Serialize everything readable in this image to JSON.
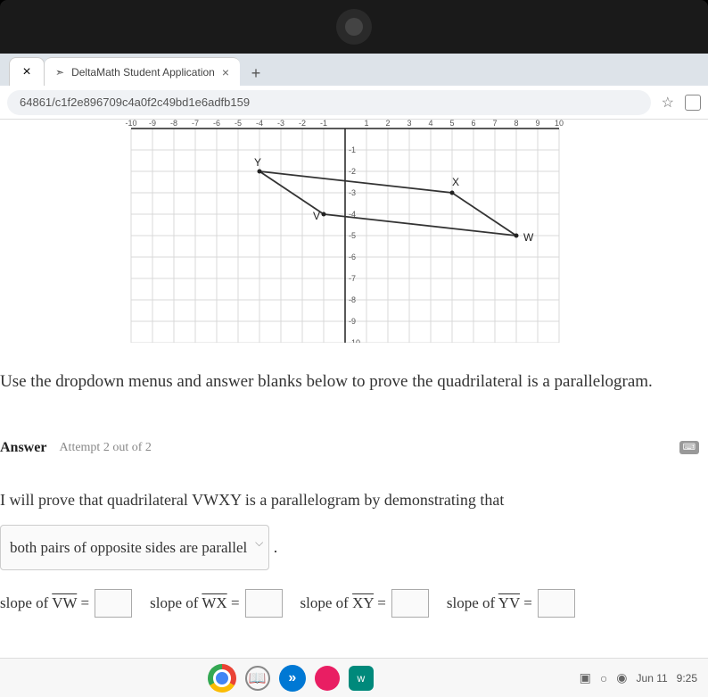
{
  "browser": {
    "tab_title": "DeltaMath Student Application",
    "url_fragment": "64861/c1f2e896709c4a0f2c49bd1e6adfb159"
  },
  "graph": {
    "x_range": [
      -10,
      10
    ],
    "y_range": [
      -10,
      0
    ],
    "points": {
      "Y": {
        "x": -4,
        "y": -2,
        "label": "Y"
      },
      "X": {
        "x": 5,
        "y": -3,
        "label": "X"
      },
      "V": {
        "x": -1,
        "y": -4,
        "label": "V"
      },
      "W": {
        "x": 8,
        "y": -5,
        "label": "W"
      }
    },
    "tick_labels_x": [
      "-10",
      "-9",
      "-8",
      "-7",
      "-6",
      "-5",
      "-4",
      "-3",
      "-2",
      "-1",
      "",
      "1",
      "2",
      "3",
      "4",
      "5",
      "6",
      "7",
      "8",
      "9",
      "10"
    ],
    "tick_labels_y": [
      "-1",
      "-2",
      "-3",
      "-4",
      "-5",
      "-6",
      "-7",
      "-8",
      "-9",
      "-10"
    ],
    "grid_color": "#d8d8d8",
    "axis_color": "#222222",
    "shape_color": "#333333"
  },
  "instruction": "Use the dropdown menus and answer blanks below to prove the quadrilateral is a parallelogram.",
  "answer": {
    "label": "Answer",
    "attempt": "Attempt 2 out of 2"
  },
  "proof": {
    "line1": "I will prove that quadrilateral VWXY is a parallelogram by demonstrating that",
    "dropdown_value": "both pairs of opposite sides are parallel",
    "slopes": [
      {
        "label_prefix": "slope of ",
        "segment": "VW",
        "suffix": " ="
      },
      {
        "label_prefix": "slope of ",
        "segment": "WX",
        "suffix": " ="
      },
      {
        "label_prefix": "slope of ",
        "segment": "XY",
        "suffix": " ="
      },
      {
        "label_prefix": "slope of ",
        "segment": "YV",
        "suffix": " ="
      }
    ]
  },
  "taskbar": {
    "date": "Jun 11",
    "time": "9:25"
  }
}
